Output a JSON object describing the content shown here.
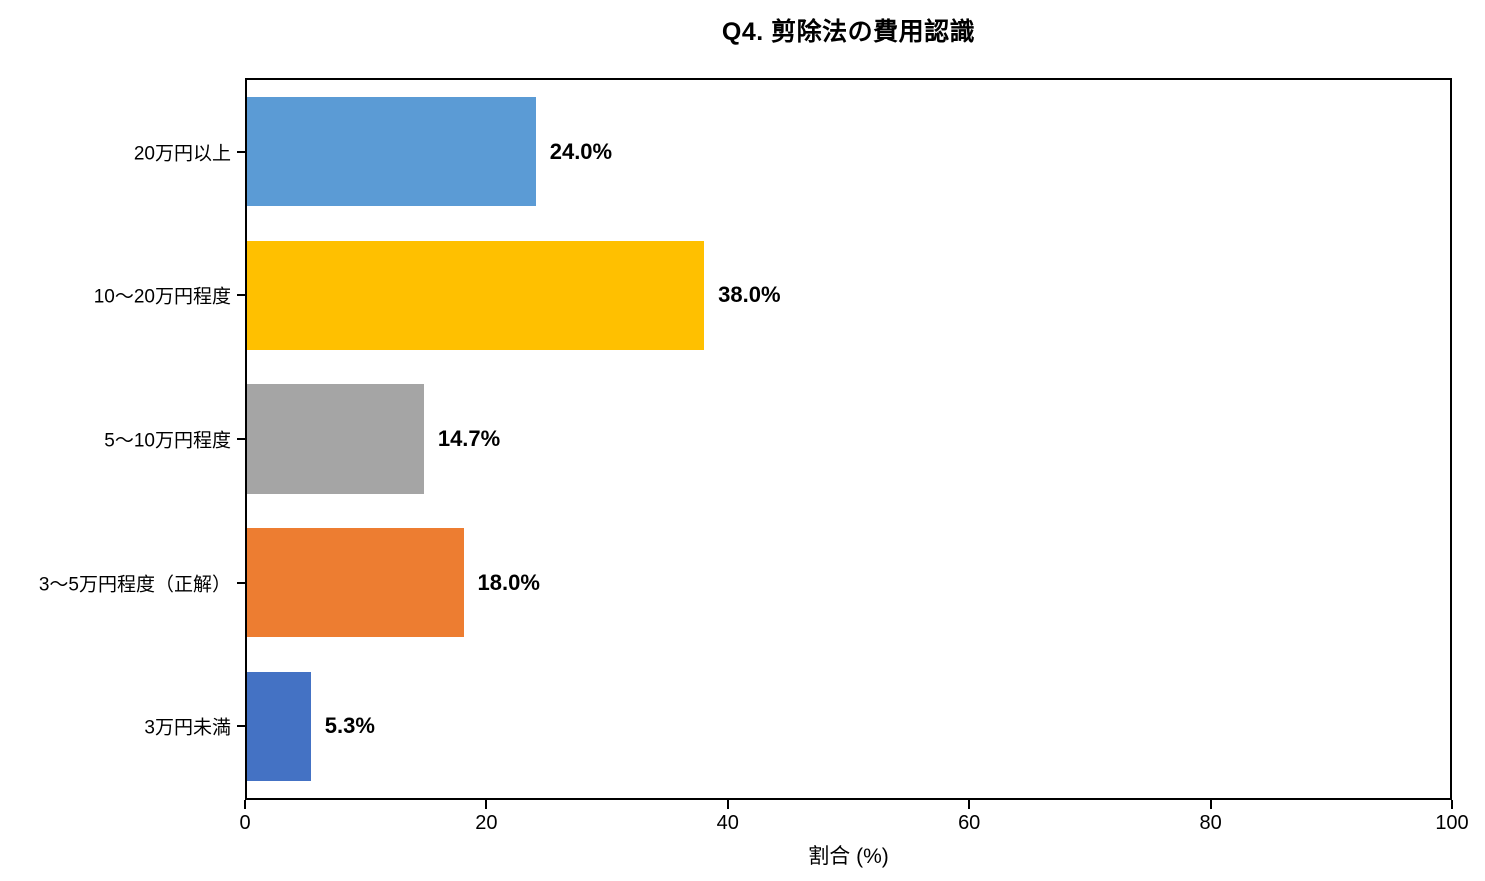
{
  "title": "Q4. 剪除法の費用認識",
  "chart_data": {
    "type": "bar",
    "orientation": "horizontal",
    "title": "Q4. 剪除法の費用認識",
    "categories": [
      "20万円以上",
      "10〜20万円程度",
      "5〜10万円程度",
      "3〜5万円程度（正解）",
      "3万円未満"
    ],
    "values": [
      24.0,
      38.0,
      14.7,
      18.0,
      5.3
    ],
    "value_labels": [
      "24.0%",
      "38.0%",
      "14.7%",
      "18.0%",
      "5.3%"
    ],
    "bar_colors": [
      "#5B9BD5",
      "#FFC000",
      "#A5A5A5",
      "#ED7D31",
      "#4472C4"
    ],
    "xlabel": "割合 (%)",
    "ylabel": "",
    "xlim": [
      0,
      100
    ],
    "x_ticks": [
      0,
      20,
      40,
      60,
      80,
      100
    ],
    "grid": false,
    "legend": false,
    "background_color": "#FFFFFF",
    "text_color": "#000000"
  }
}
